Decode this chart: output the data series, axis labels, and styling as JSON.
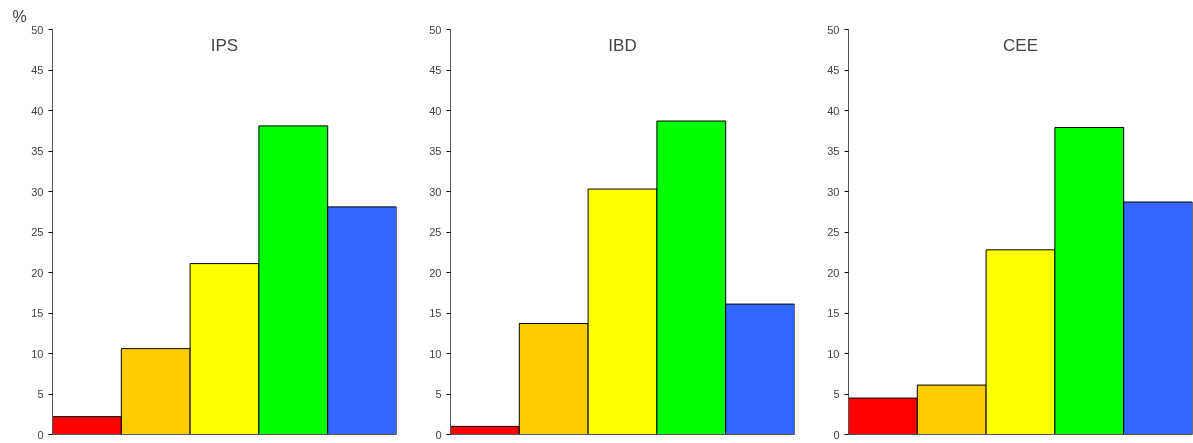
{
  "chart_data": [
    {
      "type": "bar",
      "title": "IPS",
      "ylabel": "%",
      "categories": [
        null,
        null,
        null,
        null,
        null
      ],
      "values": [
        2.2,
        10.6,
        21.1,
        38.1,
        28.1
      ],
      "colors": [
        "#ff0000",
        "#ffcc00",
        "#ffff00",
        "#00ff00",
        "#3366ff"
      ],
      "ylim": [
        0,
        50
      ],
      "yticks": [
        0,
        5,
        10,
        15,
        20,
        25,
        30,
        35,
        40,
        45,
        50
      ]
    },
    {
      "type": "bar",
      "title": "IBD",
      "categories": [
        null,
        null,
        null,
        null,
        null
      ],
      "values": [
        1.0,
        13.7,
        30.3,
        38.7,
        16.1
      ],
      "colors": [
        "#ff0000",
        "#ffcc00",
        "#ffff00",
        "#00ff00",
        "#3366ff"
      ],
      "ylim": [
        0,
        50
      ],
      "yticks": [
        0,
        5,
        10,
        15,
        20,
        25,
        30,
        35,
        40,
        45,
        50
      ]
    },
    {
      "type": "bar",
      "title": "CEE",
      "categories": [
        null,
        null,
        null,
        null,
        null
      ],
      "values": [
        4.5,
        6.1,
        22.8,
        37.9,
        28.7
      ],
      "colors": [
        "#ff0000",
        "#ffcc00",
        "#ffff00",
        "#00ff00",
        "#3366ff"
      ],
      "ylim": [
        0,
        50
      ],
      "yticks": [
        0,
        5,
        10,
        15,
        20,
        25,
        30,
        35,
        40,
        45,
        50
      ]
    }
  ]
}
